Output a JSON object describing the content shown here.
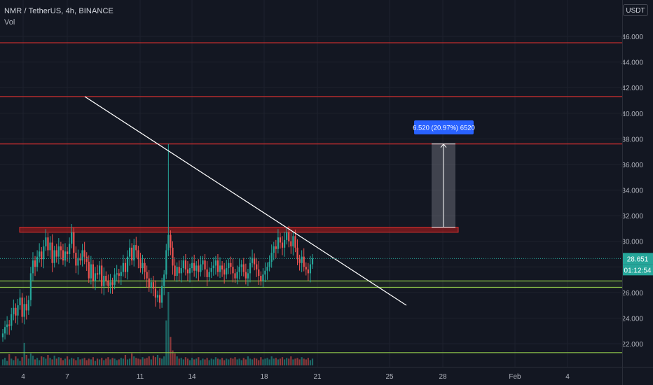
{
  "header": {
    "symbol_title": "NMR / TetherUS, 4h, BINANCE",
    "volume_label": "Vol",
    "currency": "USDT"
  },
  "price_axis": {
    "ticks": [
      "46.000",
      "44.000",
      "42.000",
      "40.000",
      "38.000",
      "36.000",
      "34.000",
      "32.000",
      "30.000",
      "28.000",
      "26.000",
      "24.000",
      "22.000"
    ],
    "last_price_label": "28.651",
    "countdown_label": "01:12:54"
  },
  "time_axis": {
    "ticks": [
      "4",
      "7",
      "11",
      "14",
      "18",
      "21",
      "25",
      "28",
      "Feb",
      "4"
    ]
  },
  "measure_label": "6.520 (20.97%) 6520",
  "colors": {
    "background": "#131722",
    "up": "#26a69a",
    "down": "#ef5350",
    "resistance": "#d32f2f",
    "support": "#8bc34a",
    "trendline": "#ffffff",
    "measure": "#2962ff",
    "last_price": "#26a69a"
  },
  "chart_data": {
    "type": "candlestick",
    "symbol": "NMR / TetherUS",
    "timeframe": "4h",
    "exchange": "BINANCE",
    "y_range": [
      20.5,
      47.5
    ],
    "x_ticks": [
      "4",
      "7",
      "11",
      "14",
      "18",
      "21",
      "25",
      "28",
      "Feb",
      "4"
    ],
    "horizontal_levels": [
      {
        "kind": "resistance",
        "value": 45.5
      },
      {
        "kind": "resistance",
        "value": 41.3
      },
      {
        "kind": "resistance",
        "value": 37.6
      },
      {
        "kind": "support",
        "value": 26.9
      },
      {
        "kind": "support",
        "value": 26.4
      },
      {
        "kind": "support",
        "value": 21.3
      }
    ],
    "resistance_zone": [
      30.7,
      31.1
    ],
    "trendline": {
      "from_value": 41.3,
      "to_value": 25.0
    },
    "measure": {
      "from": 31.1,
      "to": 37.6,
      "change": 6.52,
      "percent": 20.97
    },
    "last_price": 28.651,
    "candles_close": [
      22.8,
      23.3,
      23.5,
      23.4,
      24.3,
      24.8,
      24.2,
      25.0,
      25.6,
      24.1,
      25.1,
      24.6,
      25.4,
      27.5,
      28.5,
      28.0,
      28.8,
      29.2,
      28.6,
      29.6,
      30.3,
      29.3,
      29.9,
      28.3,
      29.3,
      28.8,
      29.6,
      29.3,
      28.5,
      29.2,
      29.0,
      29.8,
      30.7,
      29.1,
      28.1,
      28.7,
      28.5,
      29.3,
      28.8,
      28.4,
      27.1,
      28.2,
      26.9,
      27.5,
      27.4,
      28.1,
      26.5,
      27.3,
      26.9,
      26.5,
      26.8,
      26.6,
      27.4,
      27.5,
      27.3,
      27.6,
      28.3,
      27.6,
      28.8,
      29.5,
      28.5,
      29.7,
      29.3,
      28.6,
      27.9,
      28.3,
      27.6,
      27.1,
      26.4,
      26.8,
      26.3,
      25.6,
      25.8,
      25.2,
      26.5,
      27.4,
      29.3,
      30.5,
      29.5,
      28.1,
      27.3,
      28.0,
      27.5,
      27.9,
      28.5,
      27.8,
      27.5,
      27.9,
      28.3,
      27.7,
      28.1,
      27.6,
      28.2,
      28.5,
      27.8,
      27.2,
      27.6,
      27.9,
      28.1,
      28.5,
      27.6,
      28.1,
      27.8,
      27.4,
      27.9,
      28.3,
      28.0,
      27.5,
      27.1,
      27.6,
      28.0,
      28.2,
      27.6,
      27.1,
      27.5,
      28.3,
      28.7,
      28.2,
      27.8,
      27.3,
      26.9,
      27.4,
      27.7,
      28.0,
      28.4,
      29.1,
      29.6,
      29.4,
      30.3,
      29.9,
      29.5,
      30.1,
      30.7,
      30.0,
      29.6,
      30.4,
      29.5,
      28.6,
      28.3,
      28.8,
      28.0,
      27.8,
      27.5,
      28.2,
      28.651
    ],
    "volume": [
      8,
      10,
      6,
      15,
      9,
      7,
      12,
      9,
      6,
      11,
      30,
      14,
      9,
      16,
      13,
      8,
      10,
      7,
      12,
      11,
      9,
      14,
      10,
      8,
      13,
      9,
      11,
      10,
      7,
      9,
      12,
      8,
      10,
      9,
      7,
      11,
      8,
      9,
      10,
      7,
      9,
      8,
      11,
      6,
      9,
      8,
      10,
      7,
      9,
      11,
      8,
      10,
      9,
      7,
      8,
      10,
      9,
      14,
      8,
      9,
      16,
      12,
      10,
      9,
      8,
      11,
      9,
      10,
      12,
      8,
      13,
      11,
      14,
      10,
      9,
      12,
      60,
      98,
      38,
      20,
      16,
      12,
      9,
      10,
      8,
      11,
      9,
      7,
      10,
      8,
      9,
      11,
      7,
      9,
      8,
      10,
      7,
      9,
      8,
      11,
      9,
      8,
      10,
      7,
      9,
      8,
      10,
      9,
      11,
      8,
      9,
      7,
      10,
      8,
      12,
      9,
      8,
      10,
      9,
      7,
      11,
      8,
      9,
      10,
      8,
      12,
      9,
      10,
      8,
      9,
      11,
      8,
      10,
      9,
      12,
      8,
      9,
      10,
      8,
      11,
      9,
      8,
      10,
      7,
      9
    ]
  }
}
